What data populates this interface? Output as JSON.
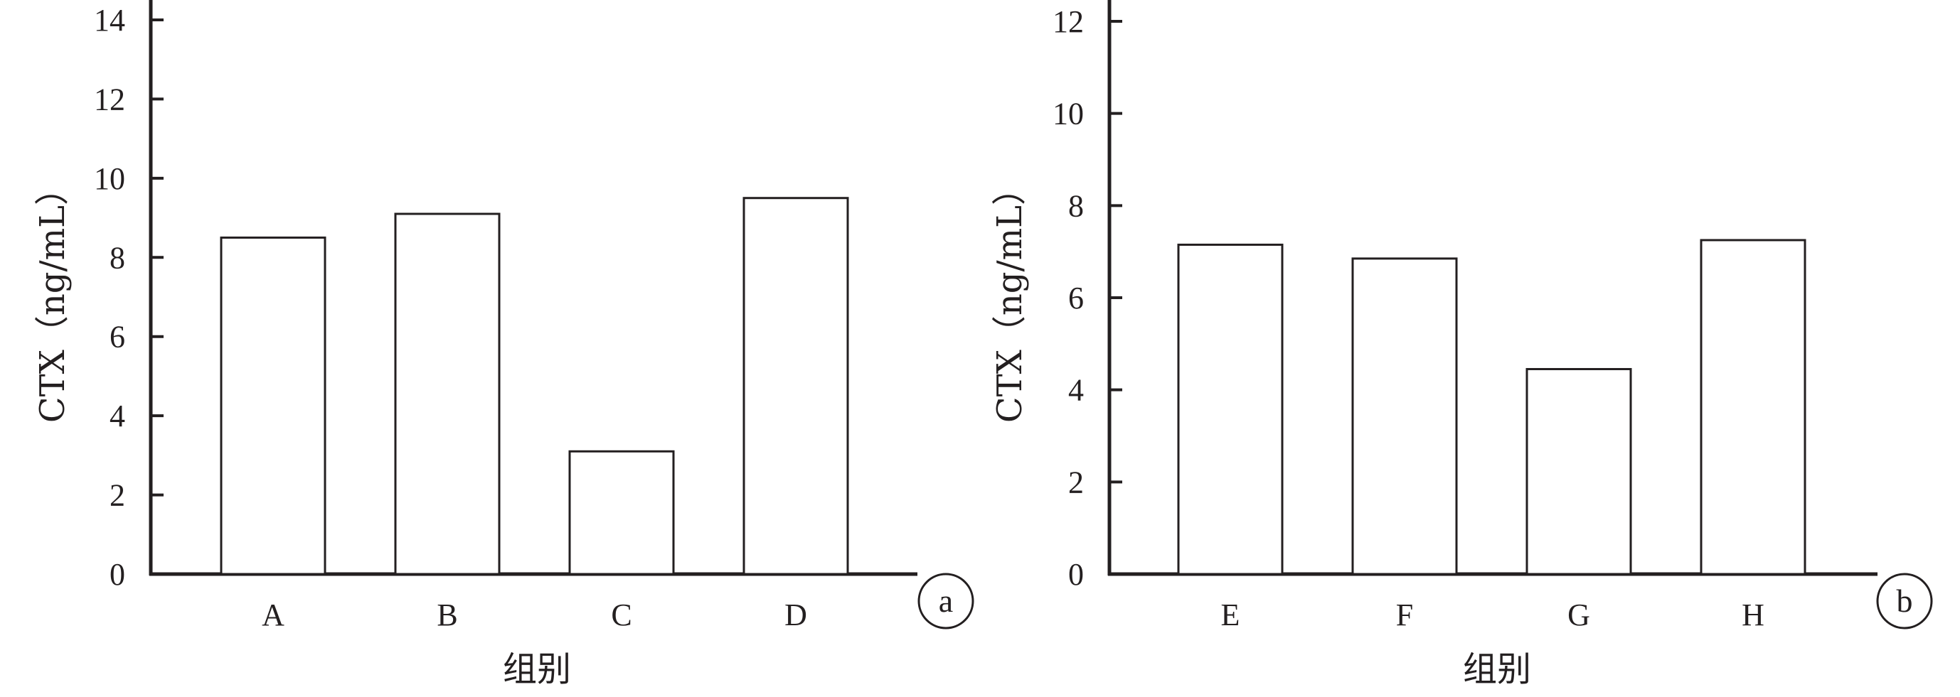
{
  "chart_data": [
    {
      "type": "bar",
      "panel_label": "a",
      "categories": [
        "A",
        "B",
        "C",
        "D"
      ],
      "values": [
        8.5,
        9.1,
        3.1,
        9.5
      ],
      "xlabel": "组别",
      "ylabel": "CTX（ng/mL）",
      "ylim": [
        0,
        14
      ],
      "yticks": [
        0,
        2,
        4,
        6,
        8,
        10,
        12,
        14
      ],
      "grid": false,
      "legend": "none",
      "bar_fill": "#ffffff",
      "bar_stroke": "#231f20"
    },
    {
      "type": "bar",
      "panel_label": "b",
      "categories": [
        "E",
        "F",
        "G",
        "H"
      ],
      "values": [
        7.15,
        6.85,
        4.45,
        7.25
      ],
      "xlabel": "组别",
      "ylabel": "CTX（ng/mL）",
      "ylim": [
        0,
        12
      ],
      "yticks": [
        0,
        2,
        4,
        6,
        8,
        10,
        12
      ],
      "grid": false,
      "legend": "none",
      "bar_fill": "#ffffff",
      "bar_stroke": "#231f20"
    }
  ]
}
